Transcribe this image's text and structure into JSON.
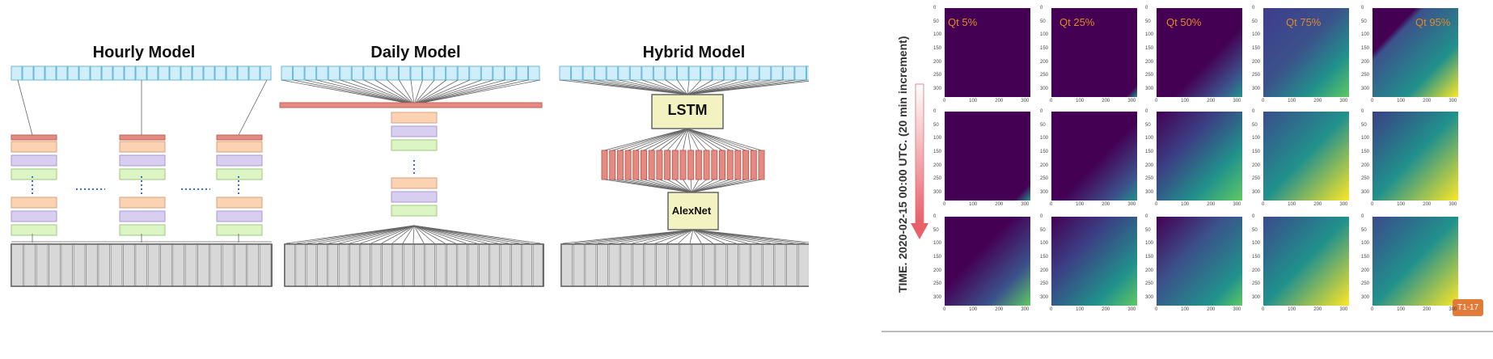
{
  "diagram": {
    "models": [
      {
        "title": "Hourly Model"
      },
      {
        "title": "Daily Model"
      },
      {
        "title": "Hybrid Model",
        "boxes": [
          "LSTM",
          "AlexNet"
        ]
      }
    ],
    "colors": {
      "input_fill": "#cfeefa",
      "input_stroke": "#6bb8d8",
      "red_bar": "#e58a80",
      "orange": "#fbd2b2",
      "purple": "#d8cef0",
      "green": "#ddf4c4",
      "yellow_box": "#f3f2c1",
      "gray_bottom": "#d8d8d8"
    }
  },
  "figure": {
    "time_label": "TIME. 2020-02-15 00:00 UTC. (20 min increment)",
    "quantiles": [
      "Qt 5%",
      "Qt 25%",
      "Qt 50%",
      "Qt 75%",
      "Qt 95%"
    ],
    "badge": "T1-17",
    "x_ticks": [
      "0",
      "100",
      "200",
      "300"
    ],
    "y_ticks": [
      "0",
      "50",
      "100",
      "150",
      "200",
      "250",
      "300"
    ],
    "colormap": [
      "#440154",
      "#3b528b",
      "#21918c",
      "#5ec962",
      "#fde725"
    ]
  }
}
